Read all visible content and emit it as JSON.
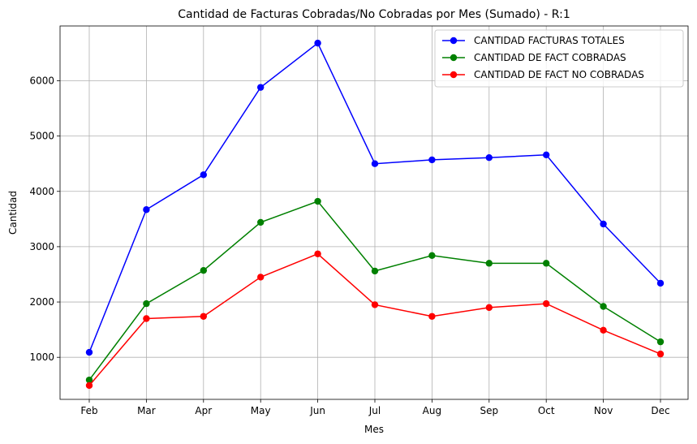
{
  "chart_data": {
    "type": "line",
    "title": "Cantidad de Facturas Cobradas/No Cobradas por Mes (Sumado) - R:1",
    "xlabel": "Mes",
    "ylabel": "Cantidad",
    "categories": [
      "Feb",
      "Mar",
      "Apr",
      "May",
      "Jun",
      "Jul",
      "Aug",
      "Sep",
      "Oct",
      "Nov",
      "Dec"
    ],
    "ylim": [
      240,
      6990
    ],
    "yticks": [
      1000,
      2000,
      3000,
      4000,
      5000,
      6000
    ],
    "grid": true,
    "legend_position": "top-right",
    "series": [
      {
        "name": "CANTIDAD FACTURAS TOTALES",
        "color": "#0000ff",
        "values": [
          1090,
          3670,
          4300,
          5880,
          6680,
          4500,
          4570,
          4610,
          4660,
          3410,
          2340
        ]
      },
      {
        "name": "CANTIDAD DE FACT COBRADAS",
        "color": "#008000",
        "values": [
          590,
          1970,
          2570,
          3440,
          3820,
          2560,
          2840,
          2700,
          2700,
          1920,
          1280
        ]
      },
      {
        "name": "CANTIDAD DE FACT NO COBRADAS",
        "color": "#ff0000",
        "values": [
          490,
          1700,
          1740,
          2450,
          2870,
          1950,
          1740,
          1900,
          1970,
          1490,
          1060
        ]
      }
    ]
  }
}
